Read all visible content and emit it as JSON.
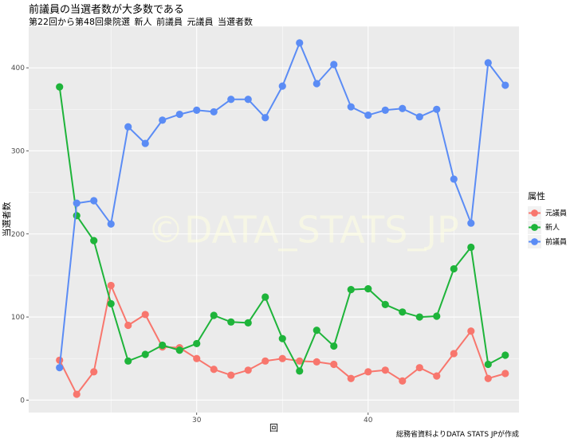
{
  "chart_data": {
    "type": "line",
    "title": "前議員の当選者数が大多数である",
    "subtitle": "第22回から第48回衆院選_新人_前議員_元議員_当選者数",
    "xlabel": "回",
    "ylabel": "当選者数",
    "xlim": [
      20.2,
      48.8
    ],
    "ylim": [
      -15,
      450
    ],
    "x_ticks": [
      30,
      40
    ],
    "y_ticks": [
      0,
      100,
      200,
      300,
      400
    ],
    "grid": true,
    "legend": {
      "title": "属性",
      "placement": "right"
    },
    "watermark": "©DATA_STATS_JP",
    "caption": "総務省資料よりDATA STATS JPが作成",
    "x": [
      22,
      23,
      24,
      25,
      26,
      27,
      28,
      29,
      30,
      31,
      32,
      33,
      34,
      35,
      36,
      37,
      38,
      39,
      40,
      41,
      42,
      43,
      44,
      45,
      46,
      47,
      48
    ],
    "series": [
      {
        "name": "元議員",
        "color": "#f8766d",
        "values": [
          48,
          7,
          34,
          138,
          90,
          103,
          64,
          63,
          50,
          37,
          30,
          36,
          47,
          50,
          47,
          46,
          43,
          26,
          34,
          36,
          23,
          39,
          29,
          56,
          83,
          26,
          32
        ]
      },
      {
        "name": "新人",
        "color": "#1eb43a",
        "values": [
          377,
          222,
          192,
          116,
          47,
          55,
          66,
          60,
          68,
          102,
          94,
          93,
          124,
          74,
          35,
          84,
          65,
          133,
          134,
          115,
          106,
          100,
          101,
          158,
          184,
          43,
          54
        ]
      },
      {
        "name": "前議員",
        "color": "#5b8cf5",
        "values": [
          39,
          237,
          240,
          212,
          329,
          309,
          337,
          344,
          349,
          347,
          362,
          362,
          340,
          378,
          430,
          381,
          404,
          353,
          343,
          349,
          351,
          341,
          350,
          266,
          213,
          406,
          379
        ]
      }
    ]
  }
}
